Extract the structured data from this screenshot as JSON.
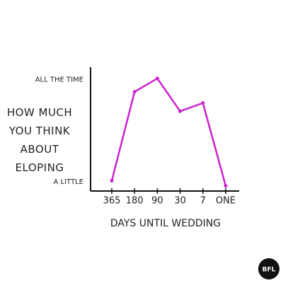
{
  "chart_data": {
    "type": "line",
    "y_label": "HOW MUCH YOU THINK ABOUT ELOPING",
    "x_label": "DAYS UNTIL WEDDING",
    "categories": [
      "365",
      "180",
      "90",
      "30",
      "7",
      "ONE"
    ],
    "values": [
      0.1,
      8.8,
      10.1,
      6.9,
      7.7,
      -0.4
    ],
    "color": "#cc22cc",
    "ylim": [
      -0.9,
      11.2
    ],
    "yticks": [
      {
        "value": 0,
        "label": "A LITTLE"
      },
      {
        "value": 10,
        "label": "ALL THE TIME"
      }
    ],
    "logo": "BFL"
  }
}
